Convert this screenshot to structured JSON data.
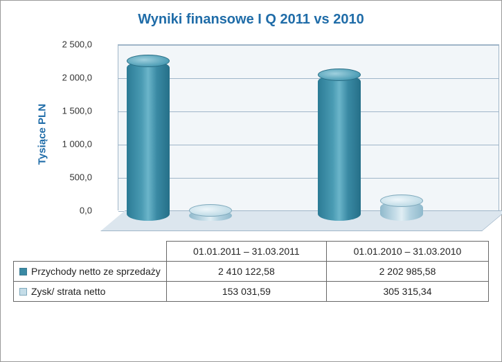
{
  "title": "Wyniki finansowe I Q 2011 vs 2010",
  "ylabel": "Tysiące PLN",
  "chart": {
    "type": "bar-3d-cylinder",
    "ylim": [
      0,
      2500
    ],
    "ytick_step": 500,
    "ytick_labels": [
      "0,0",
      "500,0",
      "1 000,0",
      "1 500,0",
      "2 000,0",
      "2 500,0"
    ],
    "categories": [
      "01.01.2011 – 31.03.2011",
      "01.01.2010 – 31.03.2010"
    ],
    "series": [
      {
        "name": "Przychody netto ze sprzedaży",
        "color_dark": "#3a8aa4",
        "values": [
          2410122.58,
          2202985.58
        ],
        "display": [
          "2 410 122,58",
          "2 202 985,58"
        ]
      },
      {
        "name": "Zysk/ strata netto",
        "color_light": "#c5dde8",
        "values": [
          153031.59,
          305315.34
        ],
        "display": [
          "153 031,59",
          "305 315,34"
        ]
      }
    ],
    "background_color": "#f2f6f9",
    "floor_color": "#dce6ee",
    "grid_color": "#9fb5c8",
    "title_color": "#1f6ca8",
    "title_fontsize": 20,
    "axis_label_fontsize": 13,
    "cylinder_width": 62
  }
}
